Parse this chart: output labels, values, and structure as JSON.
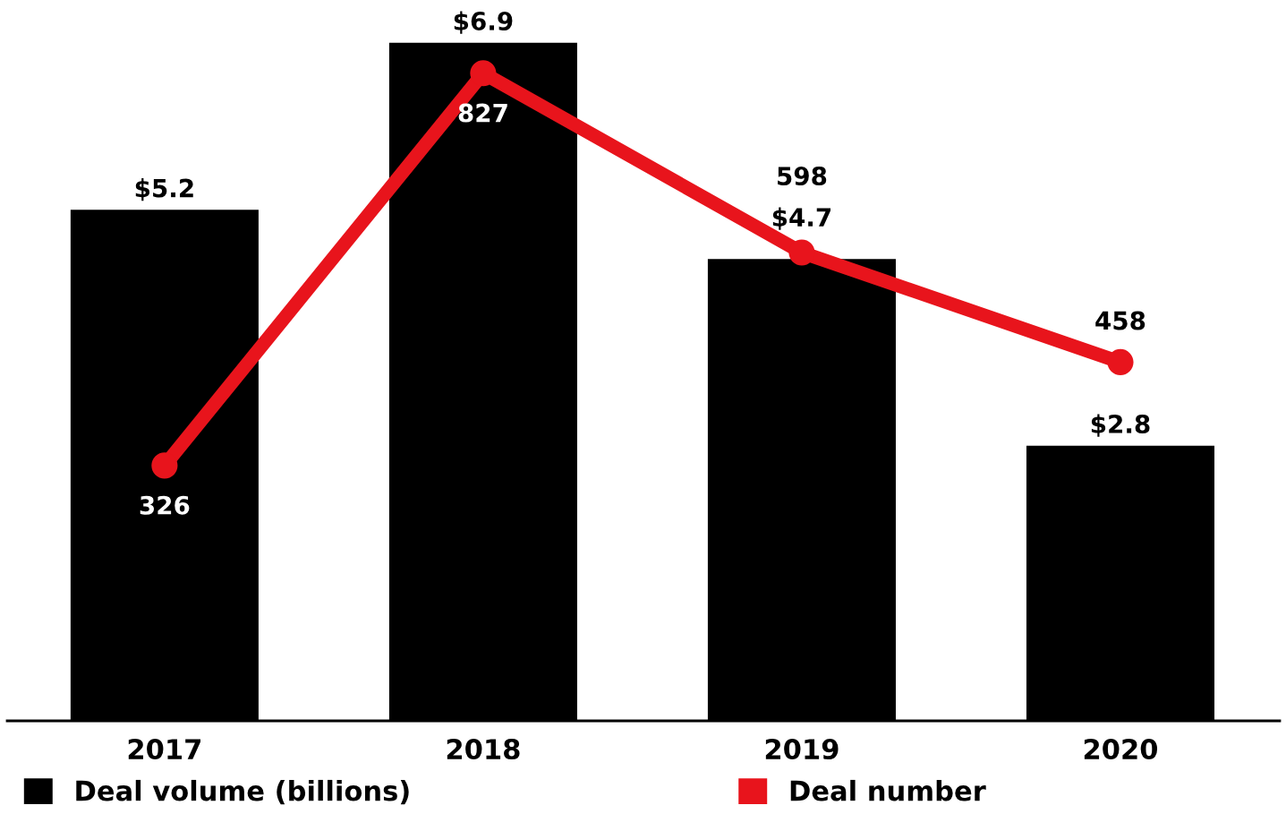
{
  "chart_data": {
    "type": "bar",
    "categories": [
      "2017",
      "2018",
      "2019",
      "2020"
    ],
    "series": [
      {
        "name": "Deal volume (billions)",
        "color": "#000000",
        "values": [
          5.2,
          6.9,
          4.7,
          2.8
        ],
        "value_labels": [
          "$5.2",
          "$6.9",
          "$4.7",
          "$2.8"
        ]
      },
      {
        "name": "Deal number",
        "type": "line",
        "axis": "y2",
        "color": "#e8141c",
        "values": [
          326,
          827,
          598,
          458
        ],
        "marker": "circle",
        "data_labels": true
      }
    ],
    "legend": "bottom",
    "grid": false
  }
}
